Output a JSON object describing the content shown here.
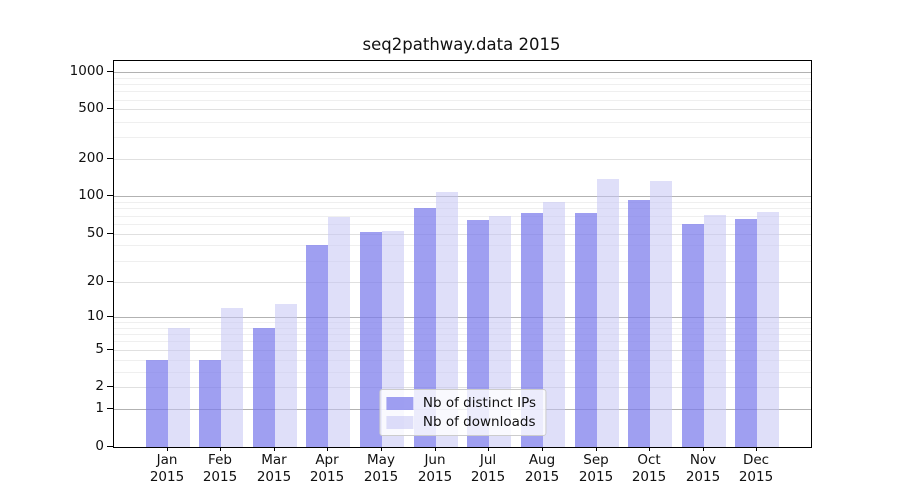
{
  "chart_data": {
    "type": "bar",
    "title": "seq2pathway.data 2015",
    "x_tick_months": [
      "Jan",
      "Feb",
      "Mar",
      "Apr",
      "May",
      "Jun",
      "Jul",
      "Aug",
      "Sep",
      "Oct",
      "Nov",
      "Dec"
    ],
    "x_tick_year": "2015",
    "categories": [
      "Jan 2015",
      "Feb 2015",
      "Mar 2015",
      "Apr 2015",
      "May 2015",
      "Jun 2015",
      "Jul 2015",
      "Aug 2015",
      "Sep 2015",
      "Oct 2015",
      "Nov 2015",
      "Dec 2015"
    ],
    "series": [
      {
        "name": "Nb of distinct IPs",
        "color": "rgba(122,122,235,0.72)",
        "apparent_color_hex": "#a1a1ef",
        "values": [
          4,
          4,
          8,
          40,
          51,
          80,
          65,
          73,
          73,
          93,
          60,
          66
        ]
      },
      {
        "name": "Nb of downloads",
        "color": "rgba(196,196,244,0.55)",
        "apparent_color_hex": "#dedef9",
        "values": [
          8,
          12,
          13,
          68,
          52,
          109,
          70,
          90,
          137,
          132,
          71,
          75
        ]
      }
    ],
    "y_ticks": [
      0,
      1,
      2,
      5,
      10,
      20,
      50,
      100,
      200,
      500,
      1000
    ],
    "y_scale": "log10(value+1)",
    "ylim": [
      0,
      1223
    ],
    "grid": "both",
    "gridline_colors": {
      "decade": "#b2b2b2",
      "major": "#e0e0e0",
      "minor": "#efefef"
    },
    "legend": {
      "position": "lower center"
    }
  }
}
